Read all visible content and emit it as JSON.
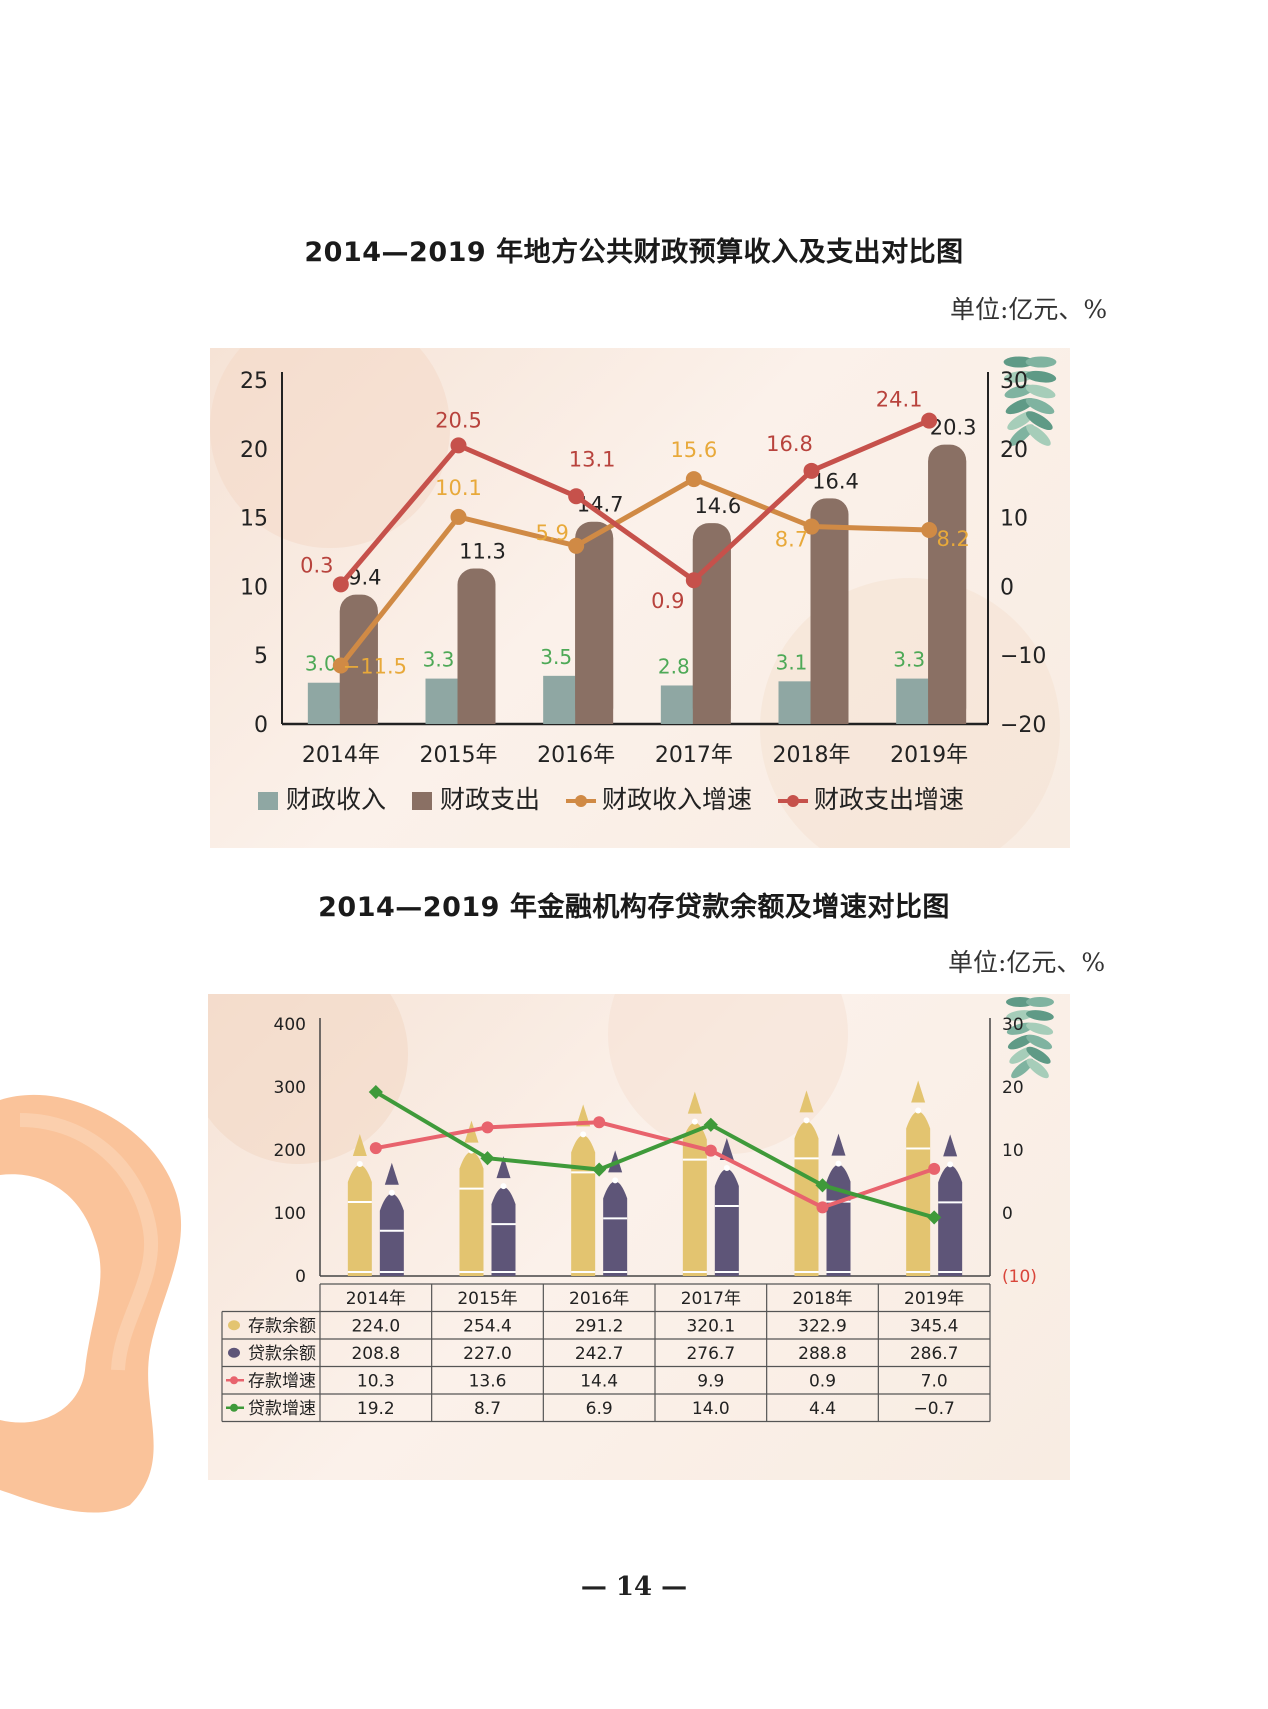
{
  "page": {
    "number": "— 14 —",
    "colors": {
      "page_bg": "#ffffff",
      "panel_bg": "#f8e9de",
      "brush": "#f9bd8f"
    }
  },
  "chart1": {
    "title": "2014—2019 年地方公共财政预算收入及支出对比图",
    "unit": "单位:亿元、%",
    "chart_data": {
      "type": "bar",
      "categories": [
        "2014年",
        "2015年",
        "2016年",
        "2017年",
        "2018年",
        "2019年"
      ],
      "y_left_ticks": [
        "0",
        "5",
        "10",
        "15",
        "20",
        "25"
      ],
      "y_right_ticks": [
        "−20",
        "−10",
        "0",
        "10",
        "20",
        "30"
      ],
      "ylim_left": [
        0,
        25
      ],
      "ylim_right": [
        -20,
        30
      ],
      "legend_position": "bottom",
      "series": [
        {
          "name": "财政收入",
          "kind": "bar",
          "axis": "left",
          "color": "#8fa7a3",
          "values": [
            3.0,
            3.3,
            3.5,
            2.8,
            3.1,
            3.3
          ],
          "labels": [
            "3.0",
            "3.3",
            "3.5",
            "2.8",
            "3.1",
            "3.3"
          ]
        },
        {
          "name": "财政支出",
          "kind": "bar",
          "axis": "left",
          "color": "#8a7064",
          "values": [
            9.4,
            11.3,
            14.7,
            14.6,
            16.4,
            20.3
          ],
          "labels": [
            "9.4",
            "11.3",
            "14.7",
            "14.6",
            "16.4",
            "20.3"
          ]
        },
        {
          "name": "财政收入增速",
          "kind": "line",
          "axis": "right",
          "color": "#d08a45",
          "label_color": "#e8a93a",
          "values": [
            -11.5,
            10.1,
            5.9,
            15.6,
            8.7,
            8.2
          ],
          "labels": [
            "−11.5",
            "10.1",
            "5.9",
            "15.6",
            "8.7",
            "8.2"
          ]
        },
        {
          "name": "财政支出增速",
          "kind": "line",
          "axis": "right",
          "color": "#c6514b",
          "label_color": "#b8433d",
          "values": [
            0.3,
            20.5,
            13.1,
            0.9,
            16.8,
            24.1
          ],
          "labels": [
            "0.3",
            "20.5",
            "13.1",
            "0.9",
            "16.8",
            "24.1"
          ]
        }
      ]
    }
  },
  "chart2": {
    "title": "2014—2019 年金融机构存贷款余额及增速对比图",
    "unit": "单位:亿元、%",
    "chart_data": {
      "type": "bar",
      "categories": [
        "2014年",
        "2015年",
        "2016年",
        "2017年",
        "2018年",
        "2019年"
      ],
      "y_left_ticks": [
        "0",
        "100",
        "200",
        "300",
        "400"
      ],
      "y_right_ticks": [
        "(10)",
        "0",
        "10",
        "20",
        "30"
      ],
      "ylim_left": [
        0,
        400
      ],
      "ylim_right": [
        -10,
        30
      ],
      "legend_position": "table-below",
      "series": [
        {
          "name": "存款余额",
          "kind": "pen",
          "axis": "left",
          "color": "#e3c470",
          "values": [
            224.0,
            254.4,
            291.2,
            320.1,
            322.9,
            345.4
          ],
          "labels": [
            "224.0",
            "254.4",
            "291.2",
            "320.1",
            "322.9",
            "345.4"
          ]
        },
        {
          "name": "贷款余额",
          "kind": "pen",
          "axis": "left",
          "color": "#5e5578",
          "values": [
            208.8,
            227.0,
            242.7,
            276.7,
            288.8,
            286.7
          ],
          "labels": [
            "208.8",
            "227.0",
            "242.7",
            "276.7",
            "288.8",
            "286.7"
          ]
        },
        {
          "name": "存款增速",
          "kind": "line",
          "axis": "right",
          "color": "#e8636d",
          "values": [
            10.3,
            13.6,
            14.4,
            9.9,
            0.9,
            7.0
          ],
          "labels": [
            "10.3",
            "13.6",
            "14.4",
            "9.9",
            "0.9",
            "7.0"
          ]
        },
        {
          "name": "贷款增速",
          "kind": "line",
          "axis": "right",
          "color": "#3f9a3a",
          "values": [
            19.2,
            8.7,
            6.9,
            14.0,
            4.4,
            -0.7
          ],
          "labels": [
            "19.2",
            "8.7",
            "6.9",
            "14.0",
            "4.4",
            "−0.7"
          ]
        }
      ],
      "colors": {
        "negative_tick": "#d9453a"
      }
    }
  }
}
